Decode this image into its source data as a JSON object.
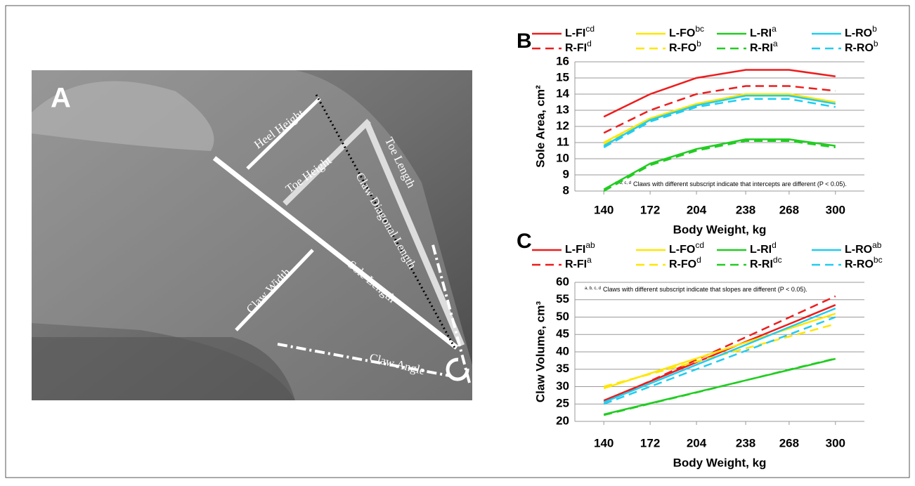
{
  "photo": {
    "panel": "A",
    "labels": [
      "Heel Height",
      "Toe Height",
      "Toe Length",
      "Claw Diagonal Length",
      "Claw Width",
      "Sole Length",
      "Claw Angle"
    ]
  },
  "chart_data": [
    {
      "type": "line",
      "panel": "B",
      "ylabel": "Sole Area, cm²",
      "xlabel": "Body Weight, kg",
      "note": {
        "marker": "a, b, c, d",
        "text": "Claws with different subscript indicate that intercepts are different (P < 0.05)."
      },
      "x": [
        140,
        172,
        204,
        238,
        268,
        300
      ],
      "xlim": [
        120,
        320
      ],
      "xticks": [
        140,
        172,
        204,
        238,
        268,
        300
      ],
      "ylim": [
        8,
        16
      ],
      "yticks": [
        8,
        9,
        10,
        11,
        12,
        13,
        14,
        15,
        16
      ],
      "grid": true,
      "series": [
        {
          "name": "L-FI",
          "superscript": "cd",
          "color": "#ee1c1c",
          "line_style": "solid",
          "values": [
            12.6,
            14.0,
            15.0,
            15.5,
            15.5,
            15.1
          ]
        },
        {
          "name": "R-FI",
          "superscript": "d",
          "color": "#ee1c1c",
          "line_style": "dashed",
          "values": [
            11.6,
            13.0,
            14.0,
            14.5,
            14.5,
            14.2
          ]
        },
        {
          "name": "L-FO",
          "superscript": "bc",
          "color": "#ffe600",
          "line_style": "solid",
          "values": [
            11.0,
            12.5,
            13.4,
            14.0,
            14.0,
            13.5
          ]
        },
        {
          "name": "R-FO",
          "superscript": "b",
          "color": "#ffe600",
          "line_style": "dashed",
          "values": [
            10.9,
            12.4,
            13.3,
            13.9,
            13.9,
            13.4
          ]
        },
        {
          "name": "L-RI",
          "superscript": "a",
          "color": "#22cc22",
          "line_style": "solid",
          "values": [
            8.1,
            9.7,
            10.6,
            11.2,
            11.2,
            10.8
          ]
        },
        {
          "name": "R-RI",
          "superscript": "a",
          "color": "#22cc22",
          "line_style": "dashed",
          "values": [
            8.0,
            9.6,
            10.5,
            11.1,
            11.1,
            10.7
          ]
        },
        {
          "name": "L-RO",
          "superscript": "b",
          "color": "#22ccee",
          "line_style": "solid",
          "values": [
            10.8,
            12.4,
            13.3,
            13.9,
            13.9,
            13.4
          ]
        },
        {
          "name": "R-RO",
          "superscript": "b",
          "color": "#22ccee",
          "line_style": "dashed",
          "values": [
            10.7,
            12.3,
            13.2,
            13.7,
            13.7,
            13.2
          ]
        }
      ]
    },
    {
      "type": "line",
      "panel": "C",
      "ylabel": "Claw Volume, cm³",
      "xlabel": "Body Weight, kg",
      "note": {
        "marker": "a, b, c, d",
        "text": "Claws with different subscript indicate that slopes are different (P < 0.05)."
      },
      "x": [
        140,
        172,
        204,
        238,
        268,
        300
      ],
      "xlim": [
        120,
        320
      ],
      "xticks": [
        140,
        172,
        204,
        238,
        268,
        300
      ],
      "ylim": [
        20,
        60
      ],
      "yticks": [
        20,
        25,
        30,
        35,
        40,
        45,
        50,
        55,
        60
      ],
      "grid": true,
      "series": [
        {
          "name": "L-FI",
          "superscript": "ab",
          "color": "#ee1c1c",
          "line_style": "solid",
          "values": [
            26.0,
            31.5,
            37.0,
            42.9,
            48.0,
            53.5
          ]
        },
        {
          "name": "R-FI",
          "superscript": "a",
          "color": "#ee1c1c",
          "line_style": "dashed",
          "values": [
            25.5,
            31.6,
            37.7,
            44.2,
            49.9,
            56.0
          ]
        },
        {
          "name": "L-FO",
          "superscript": "cd",
          "color": "#ffe600",
          "line_style": "solid",
          "values": [
            29.5,
            33.8,
            38.1,
            42.7,
            46.7,
            51.0
          ]
        },
        {
          "name": "R-FO",
          "superscript": "d",
          "color": "#ffe600",
          "line_style": "dashed",
          "values": [
            30.0,
            33.6,
            37.2,
            41.0,
            44.4,
            48.0
          ]
        },
        {
          "name": "L-RI",
          "superscript": "d",
          "color": "#22cc22",
          "line_style": "solid",
          "values": [
            22.0,
            25.2,
            28.4,
            31.8,
            34.8,
            38.0
          ]
        },
        {
          "name": "R-RI",
          "superscript": "dc",
          "color": "#22cc22",
          "line_style": "dashed",
          "values": [
            21.8,
            25.1,
            28.3,
            31.8,
            34.9,
            38.1
          ]
        },
        {
          "name": "L-RO",
          "superscript": "ab",
          "color": "#22ccee",
          "line_style": "solid",
          "values": [
            25.5,
            30.9,
            36.3,
            42.0,
            47.1,
            52.5
          ]
        },
        {
          "name": "R-RO",
          "superscript": "bc",
          "color": "#22ccee",
          "line_style": "dashed",
          "values": [
            25.0,
            30.0,
            35.0,
            40.3,
            45.0,
            50.0
          ]
        }
      ]
    }
  ]
}
